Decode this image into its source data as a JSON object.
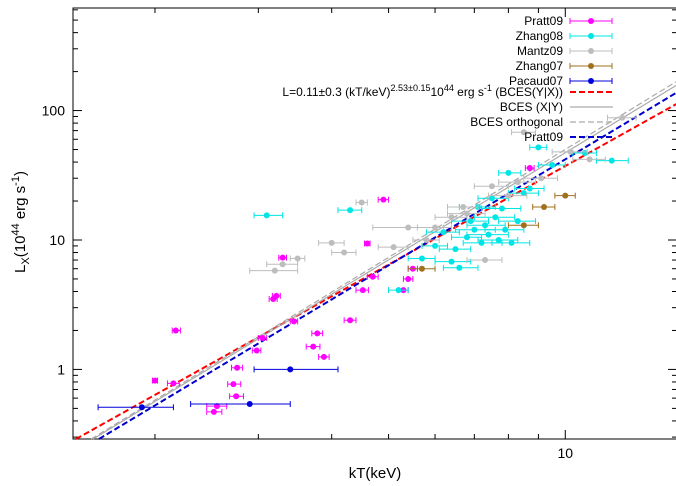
{
  "chart_data": {
    "type": "scatter",
    "xlabel": "kT(keV)",
    "ylabel": "L",
    "ylabel_sub": "X",
    "ylabel_rest": "(10",
    "ylabel_exp": "44",
    "ylabel_unit": " erg s",
    "ylabel_unit_exp": "-1",
    "ylabel_close": ")",
    "xscale": "log",
    "yscale": "log",
    "xlim": [
      1.45,
      15.5
    ],
    "ylim": [
      0.29,
      620
    ],
    "xticks": [
      {
        "v": 10,
        "label": "10"
      }
    ],
    "yticks": [
      {
        "v": 1,
        "label": "1"
      },
      {
        "v": 10,
        "label": "10"
      },
      {
        "v": 100,
        "label": "100"
      }
    ],
    "grid": false,
    "legend_position": "top-right",
    "series": [
      {
        "name": "Pratt09",
        "color": "#ff00ff",
        "points": [
          {
            "x": 2.0,
            "y": 0.82,
            "xl": 1.98,
            "xh": 2.02
          },
          {
            "x": 2.15,
            "y": 0.78,
            "xl": 2.1,
            "xh": 2.2
          },
          {
            "x": 2.17,
            "y": 2.0,
            "xl": 2.14,
            "xh": 2.21
          },
          {
            "x": 2.52,
            "y": 0.47,
            "xl": 2.45,
            "xh": 2.6
          },
          {
            "x": 2.55,
            "y": 0.52,
            "xl": 2.45,
            "xh": 2.65
          },
          {
            "x": 2.72,
            "y": 0.77,
            "xl": 2.66,
            "xh": 2.8
          },
          {
            "x": 2.75,
            "y": 0.62,
            "xl": 2.68,
            "xh": 2.83
          },
          {
            "x": 2.76,
            "y": 1.03,
            "xl": 2.7,
            "xh": 2.82
          },
          {
            "x": 2.98,
            "y": 1.4,
            "xl": 2.93,
            "xh": 3.03
          },
          {
            "x": 3.05,
            "y": 1.75,
            "xl": 3.0,
            "xh": 3.1
          },
          {
            "x": 3.18,
            "y": 3.5,
            "xl": 3.13,
            "xh": 3.23
          },
          {
            "x": 3.22,
            "y": 3.7,
            "xl": 3.17,
            "xh": 3.27
          },
          {
            "x": 3.3,
            "y": 7.3,
            "xl": 3.25,
            "xh": 3.35
          },
          {
            "x": 3.45,
            "y": 2.35,
            "xl": 3.4,
            "xh": 3.5
          },
          {
            "x": 3.72,
            "y": 1.5,
            "xl": 3.62,
            "xh": 3.82
          },
          {
            "x": 3.78,
            "y": 1.9,
            "xl": 3.7,
            "xh": 3.86
          },
          {
            "x": 3.88,
            "y": 1.25,
            "xl": 3.8,
            "xh": 3.96
          },
          {
            "x": 4.3,
            "y": 2.4,
            "xl": 4.2,
            "xh": 4.4
          },
          {
            "x": 4.52,
            "y": 4.1,
            "xl": 4.4,
            "xh": 4.62
          },
          {
            "x": 4.6,
            "y": 9.4,
            "xl": 4.55,
            "xh": 4.65
          },
          {
            "x": 4.7,
            "y": 5.2,
            "xl": 4.6,
            "xh": 4.8
          },
          {
            "x": 4.9,
            "y": 20.5,
            "xl": 4.8,
            "xh": 5.0
          },
          {
            "x": 5.3,
            "y": 4.1,
            "xl": 5.2,
            "xh": 5.4
          },
          {
            "x": 5.4,
            "y": 5.0,
            "xl": 5.3,
            "xh": 5.5
          },
          {
            "x": 5.5,
            "y": 6.0,
            "xl": 5.4,
            "xh": 5.6
          },
          {
            "x": 8.7,
            "y": 36,
            "xl": 8.55,
            "xh": 8.85
          }
        ]
      },
      {
        "name": "Zhang08",
        "color": "#00e5e5",
        "points": [
          {
            "x": 3.1,
            "y": 15.5,
            "xl": 2.95,
            "xh": 3.3
          },
          {
            "x": 4.3,
            "y": 17,
            "xl": 4.1,
            "xh": 4.5
          },
          {
            "x": 5.2,
            "y": 4.1,
            "xl": 5.0,
            "xh": 5.4
          },
          {
            "x": 5.7,
            "y": 7.2,
            "xl": 5.4,
            "xh": 6.0
          },
          {
            "x": 6.0,
            "y": 9.0,
            "xl": 5.7,
            "xh": 6.3
          },
          {
            "x": 6.2,
            "y": 11.5,
            "xl": 5.8,
            "xh": 6.6
          },
          {
            "x": 6.4,
            "y": 6.8,
            "xl": 6.0,
            "xh": 6.9
          },
          {
            "x": 6.5,
            "y": 8.5,
            "xl": 6.1,
            "xh": 6.9
          },
          {
            "x": 6.6,
            "y": 6.1,
            "xl": 6.2,
            "xh": 7.1
          },
          {
            "x": 6.8,
            "y": 10.5,
            "xl": 6.4,
            "xh": 7.2
          },
          {
            "x": 6.9,
            "y": 14,
            "xl": 6.4,
            "xh": 7.4
          },
          {
            "x": 7.0,
            "y": 12,
            "xl": 6.5,
            "xh": 7.6
          },
          {
            "x": 7.1,
            "y": 18,
            "xl": 6.6,
            "xh": 7.6
          },
          {
            "x": 7.2,
            "y": 9.5,
            "xl": 6.7,
            "xh": 7.8
          },
          {
            "x": 7.3,
            "y": 13,
            "xl": 6.8,
            "xh": 7.9
          },
          {
            "x": 7.4,
            "y": 11,
            "xl": 6.8,
            "xh": 8.0
          },
          {
            "x": 7.5,
            "y": 21,
            "xl": 7.1,
            "xh": 8.0
          },
          {
            "x": 7.6,
            "y": 15,
            "xl": 7.0,
            "xh": 8.2
          },
          {
            "x": 7.7,
            "y": 10,
            "xl": 7.1,
            "xh": 8.3
          },
          {
            "x": 7.8,
            "y": 17.5,
            "xl": 7.2,
            "xh": 8.4
          },
          {
            "x": 7.9,
            "y": 12,
            "xl": 7.3,
            "xh": 8.5
          },
          {
            "x": 8.0,
            "y": 33,
            "xl": 7.7,
            "xh": 8.4
          },
          {
            "x": 8.1,
            "y": 9.5,
            "xl": 7.5,
            "xh": 8.7
          },
          {
            "x": 8.3,
            "y": 14,
            "xl": 7.7,
            "xh": 8.9
          },
          {
            "x": 8.5,
            "y": 23,
            "xl": 8.0,
            "xh": 9.0
          },
          {
            "x": 8.7,
            "y": 25,
            "xl": 8.2,
            "xh": 9.2
          },
          {
            "x": 9.0,
            "y": 52,
            "xl": 8.7,
            "xh": 9.3
          },
          {
            "x": 9.5,
            "y": 38,
            "xl": 9.0,
            "xh": 10.0
          },
          {
            "x": 10.8,
            "y": 47,
            "xl": 10.3,
            "xh": 11.3
          },
          {
            "x": 12.0,
            "y": 41,
            "xl": 11.3,
            "xh": 12.8
          }
        ]
      },
      {
        "name": "Mantz09",
        "color": "#bdbdbd",
        "points": [
          {
            "x": 3.3,
            "y": 6.5,
            "xl": 3.1,
            "xh": 3.5
          },
          {
            "x": 3.5,
            "y": 7.2,
            "xl": 3.4,
            "xh": 3.6
          },
          {
            "x": 3.2,
            "y": 5.8,
            "xl": 2.9,
            "xh": 3.5
          },
          {
            "x": 4.0,
            "y": 9.5,
            "xl": 3.8,
            "xh": 4.2
          },
          {
            "x": 4.2,
            "y": 8.0,
            "xl": 4.0,
            "xh": 4.4
          },
          {
            "x": 4.5,
            "y": 19.5,
            "xl": 4.4,
            "xh": 4.6
          },
          {
            "x": 5.1,
            "y": 8.8,
            "xl": 4.8,
            "xh": 5.4
          },
          {
            "x": 5.4,
            "y": 12.5,
            "xl": 4.7,
            "xh": 6.2
          },
          {
            "x": 5.8,
            "y": 10,
            "xl": 5.5,
            "xh": 6.1
          },
          {
            "x": 6.0,
            "y": 12.5,
            "xl": 5.6,
            "xh": 6.4
          },
          {
            "x": 6.4,
            "y": 15,
            "xl": 6.0,
            "xh": 6.8
          },
          {
            "x": 6.7,
            "y": 18,
            "xl": 6.3,
            "xh": 7.1
          },
          {
            "x": 6.8,
            "y": 16,
            "xl": 6.3,
            "xh": 7.3
          },
          {
            "x": 7.3,
            "y": 7.0,
            "xl": 6.8,
            "xh": 7.8
          },
          {
            "x": 7.5,
            "y": 26,
            "xl": 7.0,
            "xh": 8.0
          },
          {
            "x": 8.0,
            "y": 22,
            "xl": 7.4,
            "xh": 8.6
          },
          {
            "x": 8.3,
            "y": 28,
            "xl": 7.7,
            "xh": 8.9
          },
          {
            "x": 8.5,
            "y": 68,
            "xl": 8.1,
            "xh": 8.9
          },
          {
            "x": 9.1,
            "y": 30,
            "xl": 8.5,
            "xh": 9.7
          },
          {
            "x": 10.2,
            "y": 48,
            "xl": 9.5,
            "xh": 10.9
          },
          {
            "x": 11.0,
            "y": 42,
            "xl": 10.3,
            "xh": 11.7
          },
          {
            "x": 12.5,
            "y": 88,
            "xl": 11.8,
            "xh": 13.2
          }
        ]
      },
      {
        "name": "Zhang07",
        "color": "#a0701e",
        "points": [
          {
            "x": 5.7,
            "y": 6.0,
            "xl": 5.4,
            "xh": 6.0
          },
          {
            "x": 8.5,
            "y": 13,
            "xl": 8.0,
            "xh": 9.0
          },
          {
            "x": 9.2,
            "y": 18,
            "xl": 8.8,
            "xh": 9.6
          },
          {
            "x": 10.0,
            "y": 22,
            "xl": 9.6,
            "xh": 10.4
          }
        ]
      },
      {
        "name": "Pacaud07",
        "color": "#0000dd",
        "points": [
          {
            "x": 1.9,
            "y": 0.51,
            "xl": 1.6,
            "xh": 2.15
          },
          {
            "x": 2.9,
            "y": 0.54,
            "xl": 2.3,
            "xh": 3.4
          },
          {
            "x": 3.4,
            "y": 1.0,
            "xl": 2.95,
            "xh": 4.1
          }
        ]
      }
    ],
    "lines": [
      {
        "name": "L=0.11±0.3 (kT/keV)^2.53±0.15 10^44 erg s^-1 (BCES(Y|X))",
        "color": "#ff0000",
        "dash": "6,3",
        "a": 0.11,
        "b": 2.53
      },
      {
        "name": "BCES (X|Y)",
        "color": "#aaaaaa",
        "dash": "",
        "a": 0.084,
        "b": 2.75
      },
      {
        "name": "BCES orthogonal",
        "color": "#aaaaaa",
        "dash": "6,3",
        "a": 0.085,
        "b": 2.77
      },
      {
        "name": "Pratt09",
        "color": "#0000cc",
        "dash": "6,3",
        "a": 0.08,
        "b": 2.72
      }
    ],
    "legend_eq": {
      "prefix": "L=0.11±0.3 (kT/keV)",
      "exp1": "2.53±0.15",
      "mid": "10",
      "exp2": "44",
      "unit": " erg s",
      "exp3": "-1",
      "suffix": " (BCES(Y|X))"
    }
  }
}
